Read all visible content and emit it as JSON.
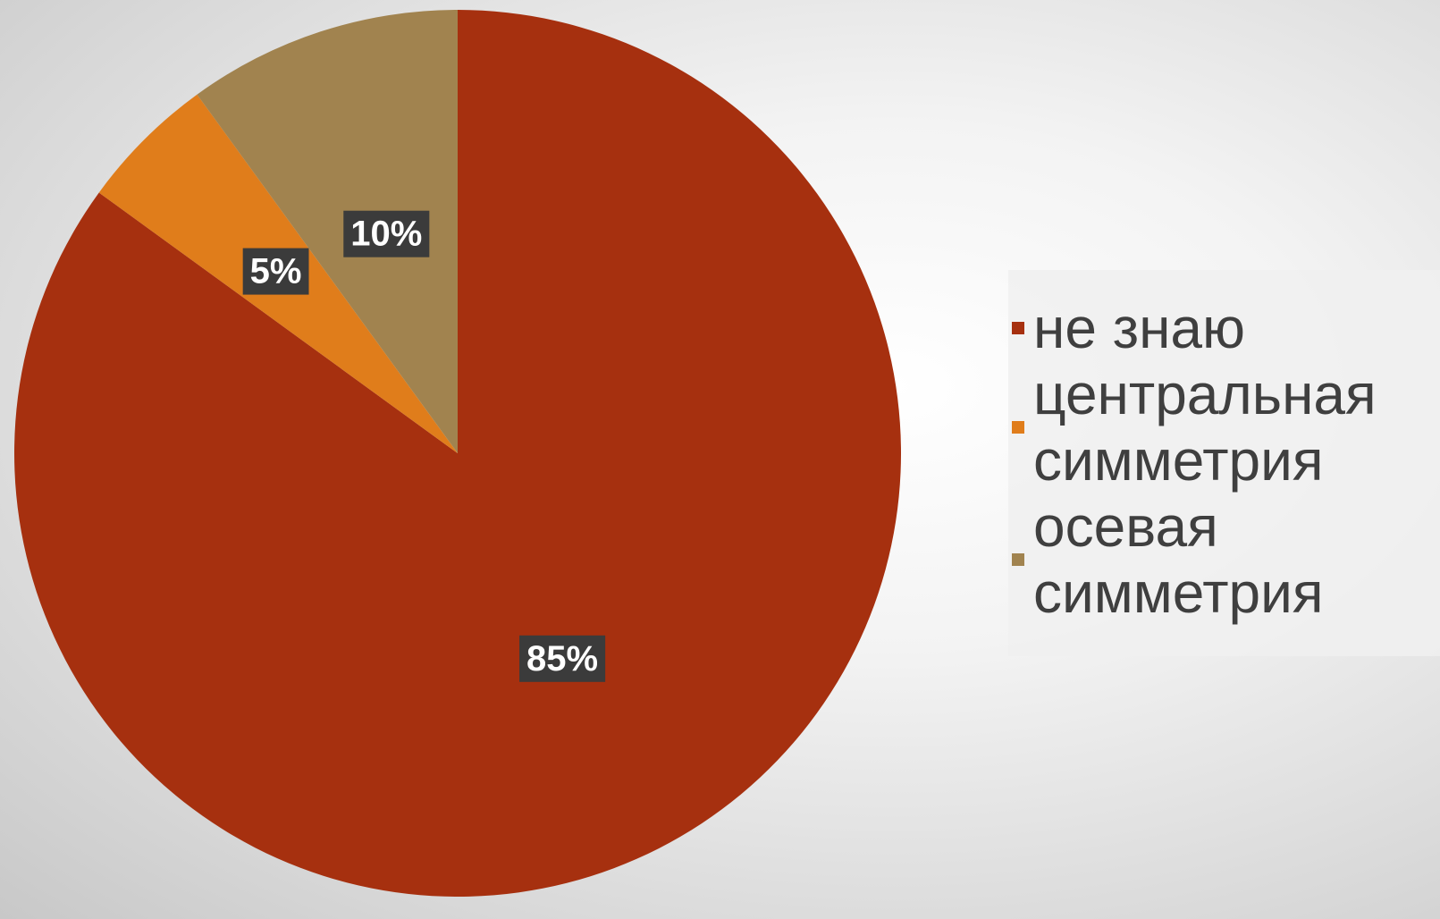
{
  "chart_data": {
    "type": "pie",
    "categories": [
      "не знаю",
      "центральная симметрия",
      "осевая симметрия"
    ],
    "values": [
      85,
      5,
      10
    ],
    "labels": [
      "85%",
      "5%",
      "10%"
    ],
    "colors": [
      "#a6300f",
      "#e07d1b",
      "#a1834f"
    ],
    "start_angle": "12 o'clock",
    "direction": "clockwise",
    "legend": {
      "placement": "right",
      "entries": [
        {
          "label": "не знаю",
          "color": "#a6300f"
        },
        {
          "label": "центральная симметрия",
          "color": "#e07d1b"
        },
        {
          "label": "осевая симметрия",
          "color": "#a1834f"
        }
      ]
    }
  }
}
